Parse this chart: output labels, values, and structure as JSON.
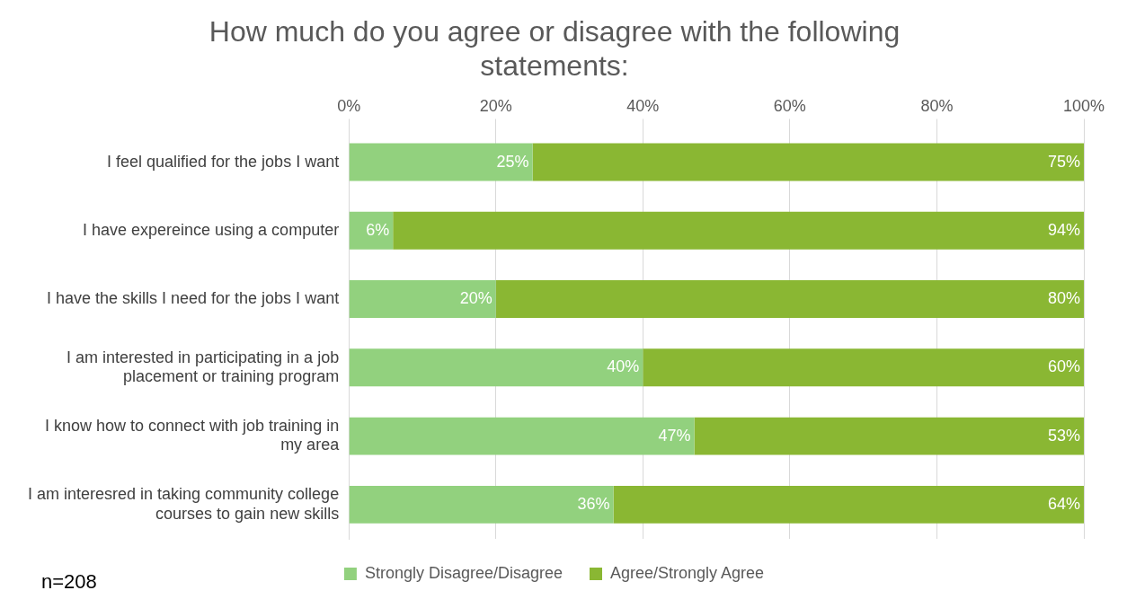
{
  "chart_data": {
    "type": "bar",
    "orientation": "horizontal",
    "stacked": true,
    "title": "How much do you agree or disagree with the following statements:",
    "categories": [
      "I feel qualified for the jobs I want",
      "I have expereince using a computer",
      "I have the skills I need for the jobs I want",
      "I am interested in participating in a job placement or training program",
      "I know how to connect with job training in my area",
      "I am interesred in taking community college courses to gain new skills"
    ],
    "series": [
      {
        "name": "Strongly Disagree/Disagree",
        "color": "#92d17e",
        "values": [
          25,
          6,
          20,
          40,
          47,
          36
        ],
        "value_labels": [
          "25%",
          "6%",
          "20%",
          "40%",
          "47%",
          "36%"
        ]
      },
      {
        "name": "Agree/Strongly Agree",
        "color": "#8ab733",
        "values": [
          75,
          94,
          80,
          60,
          53,
          64
        ],
        "value_labels": [
          "75%",
          "94%",
          "80%",
          "60%",
          "53%",
          "64%"
        ]
      }
    ],
    "xlim": [
      0,
      100
    ],
    "xticks": [
      {
        "value": 0,
        "label": "0%"
      },
      {
        "value": 20,
        "label": "20%"
      },
      {
        "value": 40,
        "label": "40%"
      },
      {
        "value": 60,
        "label": "60%"
      },
      {
        "value": 80,
        "label": "80%"
      },
      {
        "value": 100,
        "label": "100%"
      }
    ],
    "grid": "x",
    "legend": "bottom",
    "annotations": [
      "n=208"
    ]
  }
}
